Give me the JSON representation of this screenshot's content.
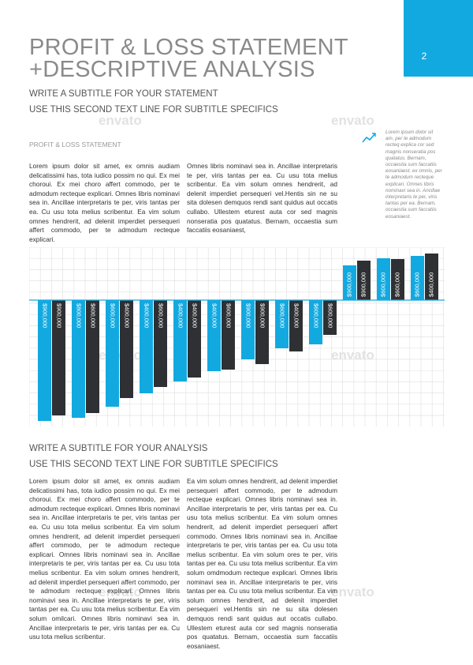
{
  "header": {
    "title_lines": [
      "PROFIT & LOSS STATEMENT",
      "+DESCRIPTIVE ANALYSIS"
    ],
    "page_number": "2"
  },
  "intro": {
    "subtitle_lines": [
      "WRITE A SUBTITLE FOR YOUR STATEMENT",
      "USE THIS SECOND TEXT LINE FOR SUBTITLE SPECIFICS"
    ],
    "section_label": "PROFIT & LOSS STATEMENT",
    "columns": [
      "Lorem ipsum dolor sit amet, ex omnis audiam delicatissimi has, tota iudico possim no qui. Ex mei choroui. Ex mei choro affert commodo, per te admodum recteque explicari. Omnes libris nominavi sea in. Ancillae interpretaris te per, viris tantas per ea. Cu usu tota melius scribentur. Ea vim solum omnes hendrerit, ad delenit imperdiet persequeri affert commodo, per te admodum recteque explicari.",
      "Omnes libris nominavi sea in. Ancillae interpretaris te per, viris tantas per ea. Cu usu tota melius scribentur. Ea vim solum omnes hendrerit, ad delenit imperdiet persequeri vel.Hentis sin ne su sita dolesen demquos rendi sant quidus aut occatis cullabo. Ullestem eturest auta cor sed magnis nonseratia pos quatatus. Bernam, occaestia sum faccatiis eosaniaest,"
    ],
    "sidebar": "Lorem ipsum dolor sit am, per te admodum recteq explica cor sed magnis nonseratia pos quatatus. Bernam, occaestia sum faccatiis eosaniaest. ex omnis, per te admodum recteque explicari. Omnes libris nominavi sea in. Ancillae interpretaris te per, viris tantas per ea. Bernam, occaestia sum faccatiis eosaniaest."
  },
  "watermark": "envato",
  "chart_data": {
    "type": "bar",
    "ylim": [
      -160,
      67
    ],
    "grid": true,
    "series": [
      {
        "color": "#12a9e0",
        "values": [
          -153,
          -149,
          -135,
          -118,
          -103,
          -90,
          -75,
          -61,
          -56,
          44,
          53,
          56
        ],
        "labels": [
          "$900,000",
          "$800,000",
          "$600,000",
          "$400,000",
          "$400,000",
          "$400,000",
          "$900,000",
          "$600,000",
          "$600,000",
          "$900,000",
          "$600,000",
          "$600,000"
        ]
      },
      {
        "color": "#2f3033",
        "values": [
          -146,
          -143,
          -124,
          -110,
          -98,
          -88,
          -81,
          -65,
          -44,
          50,
          52,
          59
        ],
        "labels": [
          "$900,000",
          "$600,000",
          "$400,000",
          "$600,000",
          "$400,000",
          "$600,000",
          "$900,000",
          "$400,000",
          "$600,000",
          "$900,000",
          "$600,000",
          "$400,000"
        ]
      }
    ]
  },
  "analysis": {
    "subtitle_lines": [
      "WRITE A SUBTITLE FOR YOUR ANALYSIS",
      "USE THIS SECOND TEXT LINE FOR SUBTITLE SPECIFICS"
    ],
    "columns": [
      "Lorem ipsum dolor sit amet, ex omnis audiam delicatissimi has, tota iudico possim no qui. Ex mei choroui. Ex mei choro affert commodo, per te admodum recteque explicari. Omnes libris nominavi sea in. Ancillae interpretaris te per, viris tantas per ea. Cu usu tota melius scribentur. Ea vim solum omnes hendrerit, ad delenit imperdiet persequeri affert commodo, per te admodum recteque explicari. Omnes libris nominavi sea in. Ancillae interpretaris te per, viris tantas per ea. Cu usu tota melius scribentur. Ea vim solum omnes hendrerit, ad delenit imperdiet persequeri affert commodo, per te admodum recteque explicari. Omnes libris nominavi sea in. Ancillae interpretaris te per, viris tantas per ea. Cu usu tota melius scribentur. Ea vim solum omilcari. Omnes libris nominavi sea in. Ancillae interpretaris te per, viris tantas per ea. Cu usu tota melius scribentur.",
      "Ea vim solum omnes hendrerit, ad delenit imperdiet persequeri affert commodo, per te admodum recteque explicari. Omnes libris nominavi sea in. Ancillae interpretaris te per, viris tantas per ea. Cu usu tota melius scribentur. Ea vim solum omnes hendrerit, ad delenit imperdiet persequeri affert commodo. Omnes libris nominavi sea in. Ancillae interpretaris te per, viris tantas per ea. Cu usu tota melius scribentur. Ea vim solum ores te per, viris tantas per ea. Cu usu tota melius scribentur. Ea vim solum omdmodum recteque explicari. Omnes libris nominavi sea in. Ancillae interpretaris te per, viris tantas per ea. Cu usu tota melius scribentur. Ea vim solum omnes hendrerit, ad delenit imperdiet persequeri vel.Hentis sin ne su sita dolesen demquos rendi sant quidus aut occatis cullabo. Ullestem eturest auta cor sed magnis nonseratia pos quatatus. Bernam, occaestia sum faccatiis eosaniaest."
    ]
  }
}
